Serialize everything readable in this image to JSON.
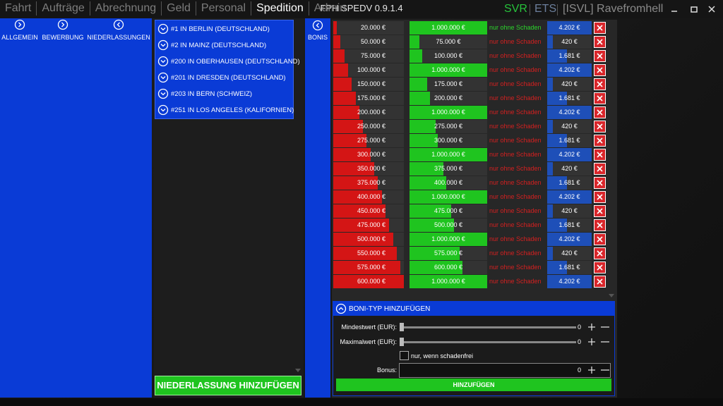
{
  "menu": [
    "Fahrt",
    "Aufträge",
    "Abrechnung",
    "Geld",
    "Personal",
    "Spedition",
    "Admin"
  ],
  "active_menu": 5,
  "title": "FPH SPEDV 0.9.1.4",
  "status": {
    "server": "SVR",
    "game": "ETS",
    "user": "[ISVL] Ravefromhell"
  },
  "sidebar": [
    "ALLGEMEIN",
    "BEWERBUNG",
    "NIEDERLASSUNGEN"
  ],
  "branches": [
    "#1 IN BERLIN (DEUTSCHLAND)",
    "#2 IN MAINZ (DEUTSCHLAND)",
    "#200 IN OBERHAUSEN (DEUTSCHLAND)",
    "#201 IN DRESDEN (DEUTSCHLAND)",
    "#203 IN BERN (SCHWEIZ)",
    "#251 IN LOS ANGELES (KALIFORNIEN)"
  ],
  "add_branch_button": "NIEDERLASSUNG HINZUFÜGEN",
  "bonus_tab": "BONIS",
  "bonus_table": {
    "rows": [
      [
        "20.000 €",
        "1.000.000 €",
        "nur ohne Schaden",
        "4.202 €"
      ],
      [
        "50.000 €",
        "75.000 €",
        "nur ohne Schaden",
        "420 €"
      ],
      [
        "75.000 €",
        "100.000 €",
        "nur ohne Schaden",
        "1.681 €"
      ],
      [
        "100.000 €",
        "1.000.000 €",
        "nur ohne Schaden",
        "4.202 €"
      ],
      [
        "150.000 €",
        "175.000 €",
        "nur ohne Schaden",
        "420 €"
      ],
      [
        "175.000 €",
        "200.000 €",
        "nur ohne Schaden",
        "1.681 €"
      ],
      [
        "200.000 €",
        "1.000.000 €",
        "nur ohne Schaden",
        "4.202 €"
      ],
      [
        "250.000 €",
        "275.000 €",
        "nur ohne Schaden",
        "420 €"
      ],
      [
        "275.000 €",
        "300.000 €",
        "nur ohne Schaden",
        "1.681 €"
      ],
      [
        "300.000 €",
        "1.000.000 €",
        "nur ohne Schaden",
        "4.202 €"
      ],
      [
        "350.000 €",
        "375.000 €",
        "nur ohne Schaden",
        "420 €"
      ],
      [
        "375.000 €",
        "400.000 €",
        "nur ohne Schaden",
        "1.681 €"
      ],
      [
        "400.000 €",
        "1.000.000 €",
        "nur ohne Schaden",
        "4.202 €"
      ],
      [
        "450.000 €",
        "475.000 €",
        "nur ohne Schaden",
        "420 €"
      ],
      [
        "475.000 €",
        "500.000 €",
        "nur ohne Schaden",
        "1.681 €"
      ],
      [
        "500.000 €",
        "1.000.000 €",
        "nur ohne Schaden",
        "4.202 €"
      ],
      [
        "550.000 €",
        "575.000 €",
        "nur ohne Schaden",
        "420 €"
      ],
      [
        "575.000 €",
        "600.000 €",
        "nur ohne Schaden",
        "1.681 €"
      ],
      [
        "600.000 €",
        "1.000.000 €",
        "nur ohne Schaden",
        "4.202 €"
      ]
    ]
  },
  "form": {
    "title": "BONI-TYP HINZUFÜGEN",
    "min_label": "Mindestwert (EUR):",
    "min_value": 0,
    "max_label": "Maximalwert (EUR):",
    "max_value": 0,
    "checkbox_label": "nur, wenn schadenfrei",
    "bonus_label": "Bonus:",
    "bonus_value": 0,
    "submit": "HINZUFÜGEN"
  }
}
